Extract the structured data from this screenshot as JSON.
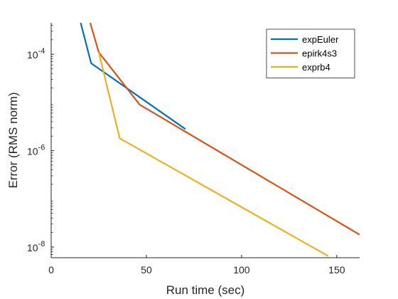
{
  "chart_data": {
    "type": "line",
    "xlabel": "Run time (sec)",
    "ylabel": "Error (RMS norm)",
    "xlim": [
      0,
      162
    ],
    "ylim": [
      6e-09,
      0.00045
    ],
    "yscale": "log",
    "xticks": [
      {
        "value": 0,
        "label": "0"
      },
      {
        "value": 50,
        "label": "50"
      },
      {
        "value": 100,
        "label": "100"
      },
      {
        "value": 150,
        "label": "150"
      }
    ],
    "yticks": [
      {
        "value": 1e-08,
        "base": "10",
        "exp": "-8"
      },
      {
        "value": 1e-06,
        "base": "10",
        "exp": "-6"
      },
      {
        "value": 0.0001,
        "base": "10",
        "exp": "-4"
      }
    ],
    "grid": false,
    "legend_position": "top-right",
    "series": [
      {
        "name": "expEuler",
        "color": "#0072BD",
        "x": [
          15.5,
          21,
          70.5
        ],
        "y": [
          0.00045,
          6.5e-05,
          2.8e-06
        ]
      },
      {
        "name": "epirk4s3",
        "color": "#D95319",
        "x": [
          20.5,
          25,
          46.5,
          162
        ],
        "y": [
          0.00045,
          0.00011,
          9e-06,
          1.8e-08
        ]
      },
      {
        "name": "exprb4",
        "color": "#EDB120",
        "x": [
          25,
          36,
          145.5
        ],
        "y": [
          0.00011,
          1.8e-06,
          6.5e-09
        ]
      }
    ]
  }
}
